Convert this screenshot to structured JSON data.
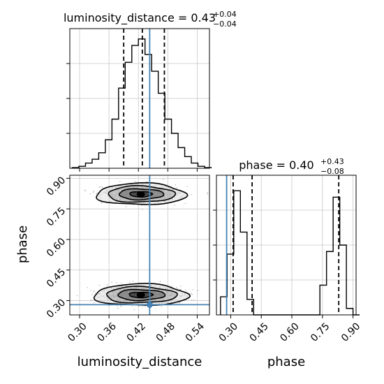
{
  "chart_data": {
    "type": "corner",
    "colors": {
      "hist": "#000000",
      "truth": "#4682b4",
      "quantile": "#000000",
      "grid": "#c8c8c8",
      "points": "#9a9a9a"
    },
    "parameters": [
      {
        "name": "luminosity_distance",
        "title": {
          "prefix": "luminosity_distance = 0.43",
          "sup": "+0.04",
          "sub": "−0.04"
        },
        "range": [
          0.28,
          0.565
        ],
        "ticks": [
          "0.30",
          "0.36",
          "0.42",
          "0.48",
          "0.54"
        ],
        "tick_values": [
          0.3,
          0.36,
          0.42,
          0.48,
          0.54
        ],
        "truth": 0.443,
        "quantiles": [
          0.39,
          0.428,
          0.473
        ],
        "hist": {
          "edges": [
            0.285,
            0.2985,
            0.312,
            0.3255,
            0.339,
            0.3525,
            0.366,
            0.3795,
            0.393,
            0.4065,
            0.42,
            0.4335,
            0.447,
            0.4605,
            0.474,
            0.4875,
            0.501,
            0.5145,
            0.528,
            0.5415,
            0.555,
            0.5685
          ],
          "counts": [
            0.005,
            0.015,
            0.04,
            0.07,
            0.12,
            0.22,
            0.38,
            0.62,
            0.82,
            0.95,
            1.0,
            0.88,
            0.75,
            0.58,
            0.38,
            0.27,
            0.16,
            0.09,
            0.04,
            0.015,
            0.005
          ]
        }
      },
      {
        "name": "phase",
        "title": {
          "prefix": "phase = 0.40",
          "sup": "+0.43",
          "sub": "−0.08"
        },
        "range": [
          0.23,
          0.915
        ],
        "ticks": [
          "0.30",
          "0.45",
          "0.60",
          "0.75",
          "0.90"
        ],
        "tick_values": [
          0.3,
          0.45,
          0.6,
          0.75,
          0.9
        ],
        "truth": 0.28,
        "quantiles": [
          0.312,
          0.405,
          0.83
        ],
        "hist": {
          "edges": [
            0.25,
            0.2825,
            0.315,
            0.3475,
            0.38,
            0.4125,
            0.445,
            0.4775,
            0.51,
            0.5425,
            0.575,
            0.6075,
            0.64,
            0.6725,
            0.705,
            0.7375,
            0.77,
            0.8025,
            0.835,
            0.8675,
            0.9,
            0.9325
          ],
          "counts": [
            0.14,
            0.47,
            0.96,
            0.64,
            0.12,
            0.0,
            0.0,
            0.0,
            0.0,
            0.0,
            0.0,
            0.0,
            0.0,
            0.0,
            0.0,
            0.23,
            0.49,
            0.91,
            0.54,
            0.05,
            0.0
          ]
        }
      }
    ],
    "scatter_2d": {
      "x": "luminosity_distance",
      "y": "phase",
      "modes": [
        {
          "x_center": 0.425,
          "x_sd": 0.04,
          "y_center": 0.328,
          "y_sd": 0.022,
          "n": 900
        },
        {
          "x_center": 0.425,
          "x_sd": 0.038,
          "y_center": 0.822,
          "y_sd": 0.022,
          "n": 650
        }
      ],
      "contours_sigma": [
        0.6,
        1.2,
        1.8,
        2.4
      ]
    }
  }
}
